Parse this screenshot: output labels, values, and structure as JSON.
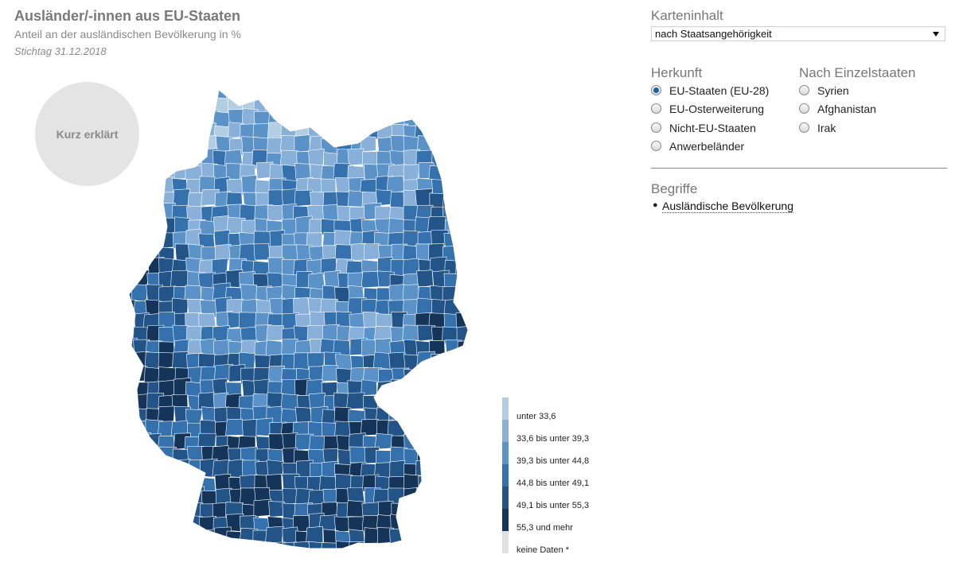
{
  "header": {
    "title": "Ausländer/-innen aus EU-Staaten",
    "subtitle": "Anteil an der ausländischen Bevölkerung in %",
    "date": "Stichtag 31.12.2018"
  },
  "kurz_button": "Kurz erklärt",
  "legend": [
    {
      "label": "unter 33,6",
      "color": "#b3cde3"
    },
    {
      "label": "33,6 bis unter 39,3",
      "color": "#88b0d8"
    },
    {
      "label": "39,3 bis unter 44,8",
      "color": "#5b92c8"
    },
    {
      "label": "44,8 bis unter 49,1",
      "color": "#3572ad"
    },
    {
      "label": "49,1 bis unter 55,3",
      "color": "#235487"
    },
    {
      "label": "55,3 und mehr",
      "color": "#14345a"
    },
    {
      "label": "keine Daten *",
      "color": "#e0e0e0"
    }
  ],
  "panel": {
    "karteninhalt_label": "Karteninhalt",
    "select_value": "nach Staatsangehörigkeit",
    "herkunft_label": "Herkunft",
    "herkunft_options": [
      {
        "label": "EU-Staaten (EU-28)",
        "checked": true
      },
      {
        "label": "EU-Osterweiterung",
        "checked": false
      },
      {
        "label": "Nicht-EU-Staaten",
        "checked": false
      },
      {
        "label": "Anwerbeländer",
        "checked": false
      }
    ],
    "einzel_label": "Nach Einzelstaaten",
    "einzel_options": [
      {
        "label": "Syrien",
        "checked": false
      },
      {
        "label": "Afghanistan",
        "checked": false
      },
      {
        "label": "Irak",
        "checked": false
      }
    ],
    "begriffe_label": "Begriffe",
    "begriffe_items": [
      "Ausländische Bevölkerung"
    ]
  }
}
